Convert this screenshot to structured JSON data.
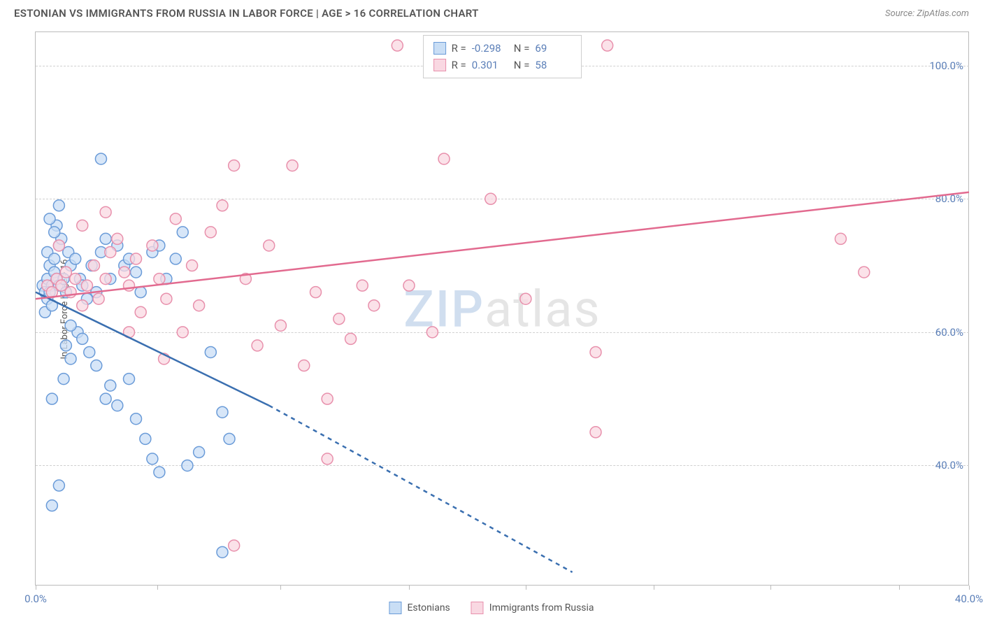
{
  "header": {
    "title": "ESTONIAN VS IMMIGRANTS FROM RUSSIA IN LABOR FORCE | AGE > 16 CORRELATION CHART",
    "source": "Source: ZipAtlas.com"
  },
  "chart": {
    "type": "scatter",
    "ylabel": "In Labor Force | Age > 16",
    "watermark": {
      "z": "ZIP",
      "rest": "atlas"
    },
    "background_color": "#ffffff",
    "grid_color": "#d0d0d0",
    "axis_color": "#bbbbbb",
    "tick_label_color": "#5b7fb8",
    "xlim": [
      0,
      40
    ],
    "ylim": [
      22,
      105
    ],
    "xticks": [
      0,
      5.2,
      10.5,
      16,
      21,
      26.5,
      31.5,
      37,
      40
    ],
    "xtick_labels": {
      "0": "0.0%",
      "40": "40.0%"
    },
    "yticks": [
      40,
      60,
      80,
      100
    ],
    "ytick_labels": {
      "40": "40.0%",
      "60": "60.0%",
      "80": "80.0%",
      "100": "100.0%"
    },
    "marker_radius": 8,
    "marker_stroke_width": 1.5,
    "series": {
      "estonians": {
        "label": "Estonians",
        "fill": "#c9def5",
        "stroke": "#6a9bd8",
        "line_color": "#3a6fb0",
        "r_value": "-0.298",
        "n_value": "69",
        "trend": {
          "x1": 0,
          "y1": 66,
          "x2_solid": 10,
          "y2_solid": 49,
          "x2_dash": 23,
          "y2_dash": 24
        },
        "points": [
          [
            0.3,
            67
          ],
          [
            0.4,
            66
          ],
          [
            0.5,
            68
          ],
          [
            0.6,
            70
          ],
          [
            0.5,
            65
          ],
          [
            0.7,
            67
          ],
          [
            0.8,
            69
          ],
          [
            0.6,
            66
          ],
          [
            0.9,
            68
          ],
          [
            1.0,
            67
          ],
          [
            0.4,
            63
          ],
          [
            0.7,
            64
          ],
          [
            0.5,
            72
          ],
          [
            0.8,
            71
          ],
          [
            1.0,
            73
          ],
          [
            1.2,
            68
          ],
          [
            1.3,
            66
          ],
          [
            1.5,
            70
          ],
          [
            1.1,
            74
          ],
          [
            0.9,
            76
          ],
          [
            0.6,
            77
          ],
          [
            0.8,
            75
          ],
          [
            1.4,
            72
          ],
          [
            1.7,
            71
          ],
          [
            1.9,
            68
          ],
          [
            2.0,
            67
          ],
          [
            2.2,
            65
          ],
          [
            2.4,
            70
          ],
          [
            2.6,
            66
          ],
          [
            2.8,
            72
          ],
          [
            3.0,
            74
          ],
          [
            3.2,
            68
          ],
          [
            3.5,
            73
          ],
          [
            3.8,
            70
          ],
          [
            4.0,
            71
          ],
          [
            4.3,
            69
          ],
          [
            4.5,
            66
          ],
          [
            5.0,
            72
          ],
          [
            5.3,
            73
          ],
          [
            5.6,
            68
          ],
          [
            6.0,
            71
          ],
          [
            6.3,
            75
          ],
          [
            1.0,
            79
          ],
          [
            1.3,
            58
          ],
          [
            1.5,
            56
          ],
          [
            1.8,
            60
          ],
          [
            2.0,
            59
          ],
          [
            2.3,
            57
          ],
          [
            2.6,
            55
          ],
          [
            3.0,
            50
          ],
          [
            3.2,
            52
          ],
          [
            3.5,
            49
          ],
          [
            4.0,
            53
          ],
          [
            4.3,
            47
          ],
          [
            4.7,
            44
          ],
          [
            5.0,
            41
          ],
          [
            5.3,
            39
          ],
          [
            1.0,
            37
          ],
          [
            0.7,
            34
          ],
          [
            1.5,
            61
          ],
          [
            6.5,
            40
          ],
          [
            7.0,
            42
          ],
          [
            7.5,
            57
          ],
          [
            8.0,
            48
          ],
          [
            8.3,
            44
          ],
          [
            2.8,
            86
          ],
          [
            0.7,
            50
          ],
          [
            1.2,
            53
          ],
          [
            8.0,
            27
          ]
        ]
      },
      "russia": {
        "label": "Immigrants from Russia",
        "fill": "#f9d8e2",
        "stroke": "#e890ac",
        "line_color": "#e26a8f",
        "r_value": "0.301",
        "n_value": "58",
        "trend": {
          "x1": 0,
          "y1": 65,
          "x2": 40,
          "y2": 81
        },
        "points": [
          [
            0.5,
            67
          ],
          [
            0.7,
            66
          ],
          [
            0.9,
            68
          ],
          [
            1.1,
            67
          ],
          [
            1.3,
            69
          ],
          [
            1.5,
            66
          ],
          [
            1.7,
            68
          ],
          [
            2.0,
            64
          ],
          [
            2.2,
            67
          ],
          [
            2.5,
            70
          ],
          [
            2.7,
            65
          ],
          [
            3.0,
            68
          ],
          [
            3.2,
            72
          ],
          [
            3.5,
            74
          ],
          [
            3.8,
            69
          ],
          [
            4.0,
            67
          ],
          [
            4.3,
            71
          ],
          [
            4.5,
            63
          ],
          [
            5.0,
            73
          ],
          [
            5.3,
            68
          ],
          [
            5.6,
            65
          ],
          [
            6.0,
            77
          ],
          [
            6.3,
            60
          ],
          [
            6.7,
            70
          ],
          [
            7.0,
            64
          ],
          [
            7.5,
            75
          ],
          [
            8.0,
            79
          ],
          [
            8.5,
            85
          ],
          [
            9.0,
            68
          ],
          [
            9.5,
            58
          ],
          [
            10.0,
            73
          ],
          [
            10.5,
            61
          ],
          [
            11.0,
            85
          ],
          [
            11.5,
            55
          ],
          [
            12.0,
            66
          ],
          [
            12.5,
            50
          ],
          [
            13.0,
            62
          ],
          [
            13.5,
            59
          ],
          [
            14.0,
            67
          ],
          [
            14.5,
            64
          ],
          [
            15.5,
            103
          ],
          [
            16.0,
            67
          ],
          [
            17.0,
            60
          ],
          [
            17.5,
            86
          ],
          [
            19.5,
            80
          ],
          [
            21.0,
            65
          ],
          [
            24.5,
            103
          ],
          [
            24.0,
            57
          ],
          [
            24.0,
            45
          ],
          [
            12.5,
            41
          ],
          [
            8.5,
            28
          ],
          [
            34.5,
            74
          ],
          [
            35.5,
            69
          ],
          [
            4.0,
            60
          ],
          [
            5.5,
            56
          ],
          [
            1.0,
            73
          ],
          [
            2.0,
            76
          ],
          [
            3.0,
            78
          ]
        ]
      }
    },
    "legend": {
      "r_label": "R =",
      "n_label": "N ="
    }
  }
}
